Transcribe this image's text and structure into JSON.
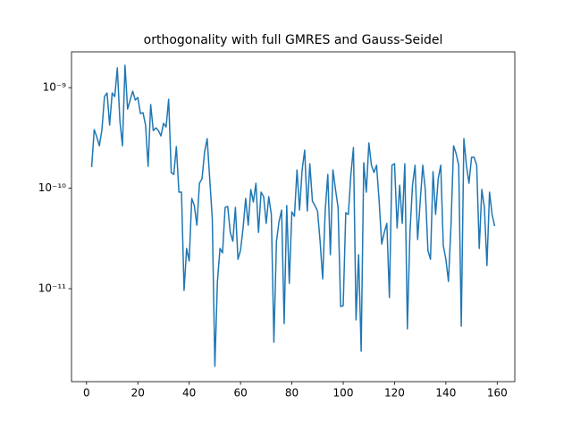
{
  "chart_data": {
    "type": "line",
    "title": "orthogonality with full GMRES and Gauss-Seidel",
    "yscale": "log",
    "color": "#1f77b4",
    "xlim": [
      -5.85,
      166.85
    ],
    "xticks": [
      0,
      20,
      40,
      60,
      80,
      100,
      120,
      140,
      160
    ],
    "ylim": [
      1.19e-12,
      2.27e-09
    ],
    "yticks": [
      {
        "value": 1e-11,
        "label": "10⁻¹¹"
      },
      {
        "value": 1e-10,
        "label": "10⁻¹⁰"
      },
      {
        "value": 1e-09,
        "label": "10⁻⁹"
      }
    ],
    "x": [
      2,
      3,
      4,
      5,
      6,
      7,
      8,
      9,
      10,
      11,
      12,
      13,
      14,
      15,
      16,
      17,
      18,
      19,
      20,
      21,
      22,
      23,
      24,
      25,
      26,
      27,
      28,
      29,
      30,
      31,
      32,
      33,
      34,
      35,
      36,
      37,
      38,
      39,
      40,
      41,
      42,
      43,
      44,
      45,
      46,
      47,
      48,
      49,
      50,
      51,
      52,
      53,
      54,
      55,
      56,
      57,
      58,
      59,
      60,
      61,
      62,
      63,
      64,
      65,
      66,
      67,
      68,
      69,
      70,
      71,
      72,
      73,
      74,
      75,
      76,
      77,
      78,
      79,
      80,
      81,
      82,
      83,
      84,
      85,
      86,
      87,
      88,
      89,
      90,
      91,
      92,
      93,
      94,
      95,
      96,
      97,
      98,
      99,
      100,
      101,
      102,
      103,
      104,
      105,
      106,
      107,
      108,
      109,
      110,
      111,
      112,
      113,
      114,
      115,
      116,
      117,
      118,
      119,
      120,
      121,
      122,
      123,
      124,
      125,
      126,
      127,
      128,
      129,
      130,
      131,
      132,
      133,
      134,
      135,
      136,
      137,
      138,
      139,
      140,
      141,
      142,
      143,
      144,
      145,
      146,
      147,
      148,
      149,
      150,
      151,
      152,
      153,
      154,
      155,
      156,
      157,
      158,
      159
    ],
    "values": [
      1.62e-10,
      3.82e-10,
      3.24e-10,
      2.64e-10,
      3.82e-10,
      8.15e-10,
      8.85e-10,
      4.24e-10,
      8.85e-10,
      8.15e-10,
      1.57e-09,
      4.69e-10,
      2.64e-10,
      1.67e-09,
      6.12e-10,
      7.51e-10,
      9.21e-10,
      7.51e-10,
      7.98e-10,
      5.52e-10,
      5.64e-10,
      4.24e-10,
      1.65e-10,
      6.78e-10,
      3.74e-10,
      3.98e-10,
      3.74e-10,
      3.31e-10,
      4.41e-10,
      4.06e-10,
      7.66e-10,
      1.43e-10,
      1.37e-10,
      2.59e-10,
      9.12e-11,
      9.12e-11,
      9.6e-12,
      2.51e-11,
      1.89e-11,
      7.9e-11,
      6.71e-11,
      4.28e-11,
      1.12e-10,
      1.24e-10,
      2.29e-10,
      3.11e-10,
      1.24e-10,
      4.93e-11,
      1.69e-12,
      1.18e-11,
      2.51e-11,
      2.27e-11,
      6.44e-11,
      6.58e-11,
      3.63e-11,
      2.96e-11,
      6.44e-11,
      1.96e-11,
      2.41e-11,
      4.02e-11,
      7.9e-11,
      4.28e-11,
      9.7e-11,
      7.28e-11,
      1.12e-10,
      3.63e-11,
      9.12e-11,
      8.24e-11,
      4.46e-11,
      8.24e-11,
      5.47e-11,
      2.93e-12,
      2.96e-11,
      4.65e-11,
      6.05e-11,
      4.5e-12,
      6.71e-11,
      1.13e-11,
      5.81e-11,
      5.25e-11,
      1.52e-10,
      6.05e-11,
      1.52e-10,
      2.39e-10,
      5.93e-11,
      1.75e-10,
      7.43e-11,
      6.71e-11,
      5.93e-11,
      2.96e-11,
      1.25e-11,
      6.05e-11,
      1.37e-10,
      2.18e-11,
      1.52e-10,
      9.7e-11,
      6.44e-11,
      6.64e-12,
      6.78e-12,
      5.7e-11,
      5.47e-11,
      1.37e-10,
      2.54e-10,
      4.89e-12,
      2.18e-11,
      2.39e-12,
      1.79e-10,
      9.12e-11,
      2.81e-10,
      1.69e-10,
      1.43e-10,
      1.69e-10,
      7.43e-11,
      2.78e-11,
      3.63e-11,
      4.46e-11,
      8.15e-12,
      1.69e-10,
      1.75e-10,
      4.02e-11,
      1.07e-10,
      4.46e-11,
      1.75e-10,
      3.98e-12,
      3.63e-11,
      1.07e-10,
      1.69e-10,
      3.08e-11,
      7.43e-11,
      1.69e-10,
      9.5e-11,
      2.41e-11,
      1.96e-11,
      1.46e-10,
      5.47e-11,
      1.24e-10,
      1.69e-10,
      2.67e-11,
      1.96e-11,
      1.18e-11,
      4.28e-11,
      2.64e-10,
      2.2e-10,
      1.69e-10,
      4.23e-12,
      3.11e-10,
      1.69e-10,
      1.12e-10,
      2.03e-10,
      2.03e-10,
      1.69e-10,
      2.51e-11,
      9.7e-11,
      6.44e-11,
      1.7e-11,
      9.12e-11,
      5.47e-11,
      4.19e-11
    ]
  }
}
